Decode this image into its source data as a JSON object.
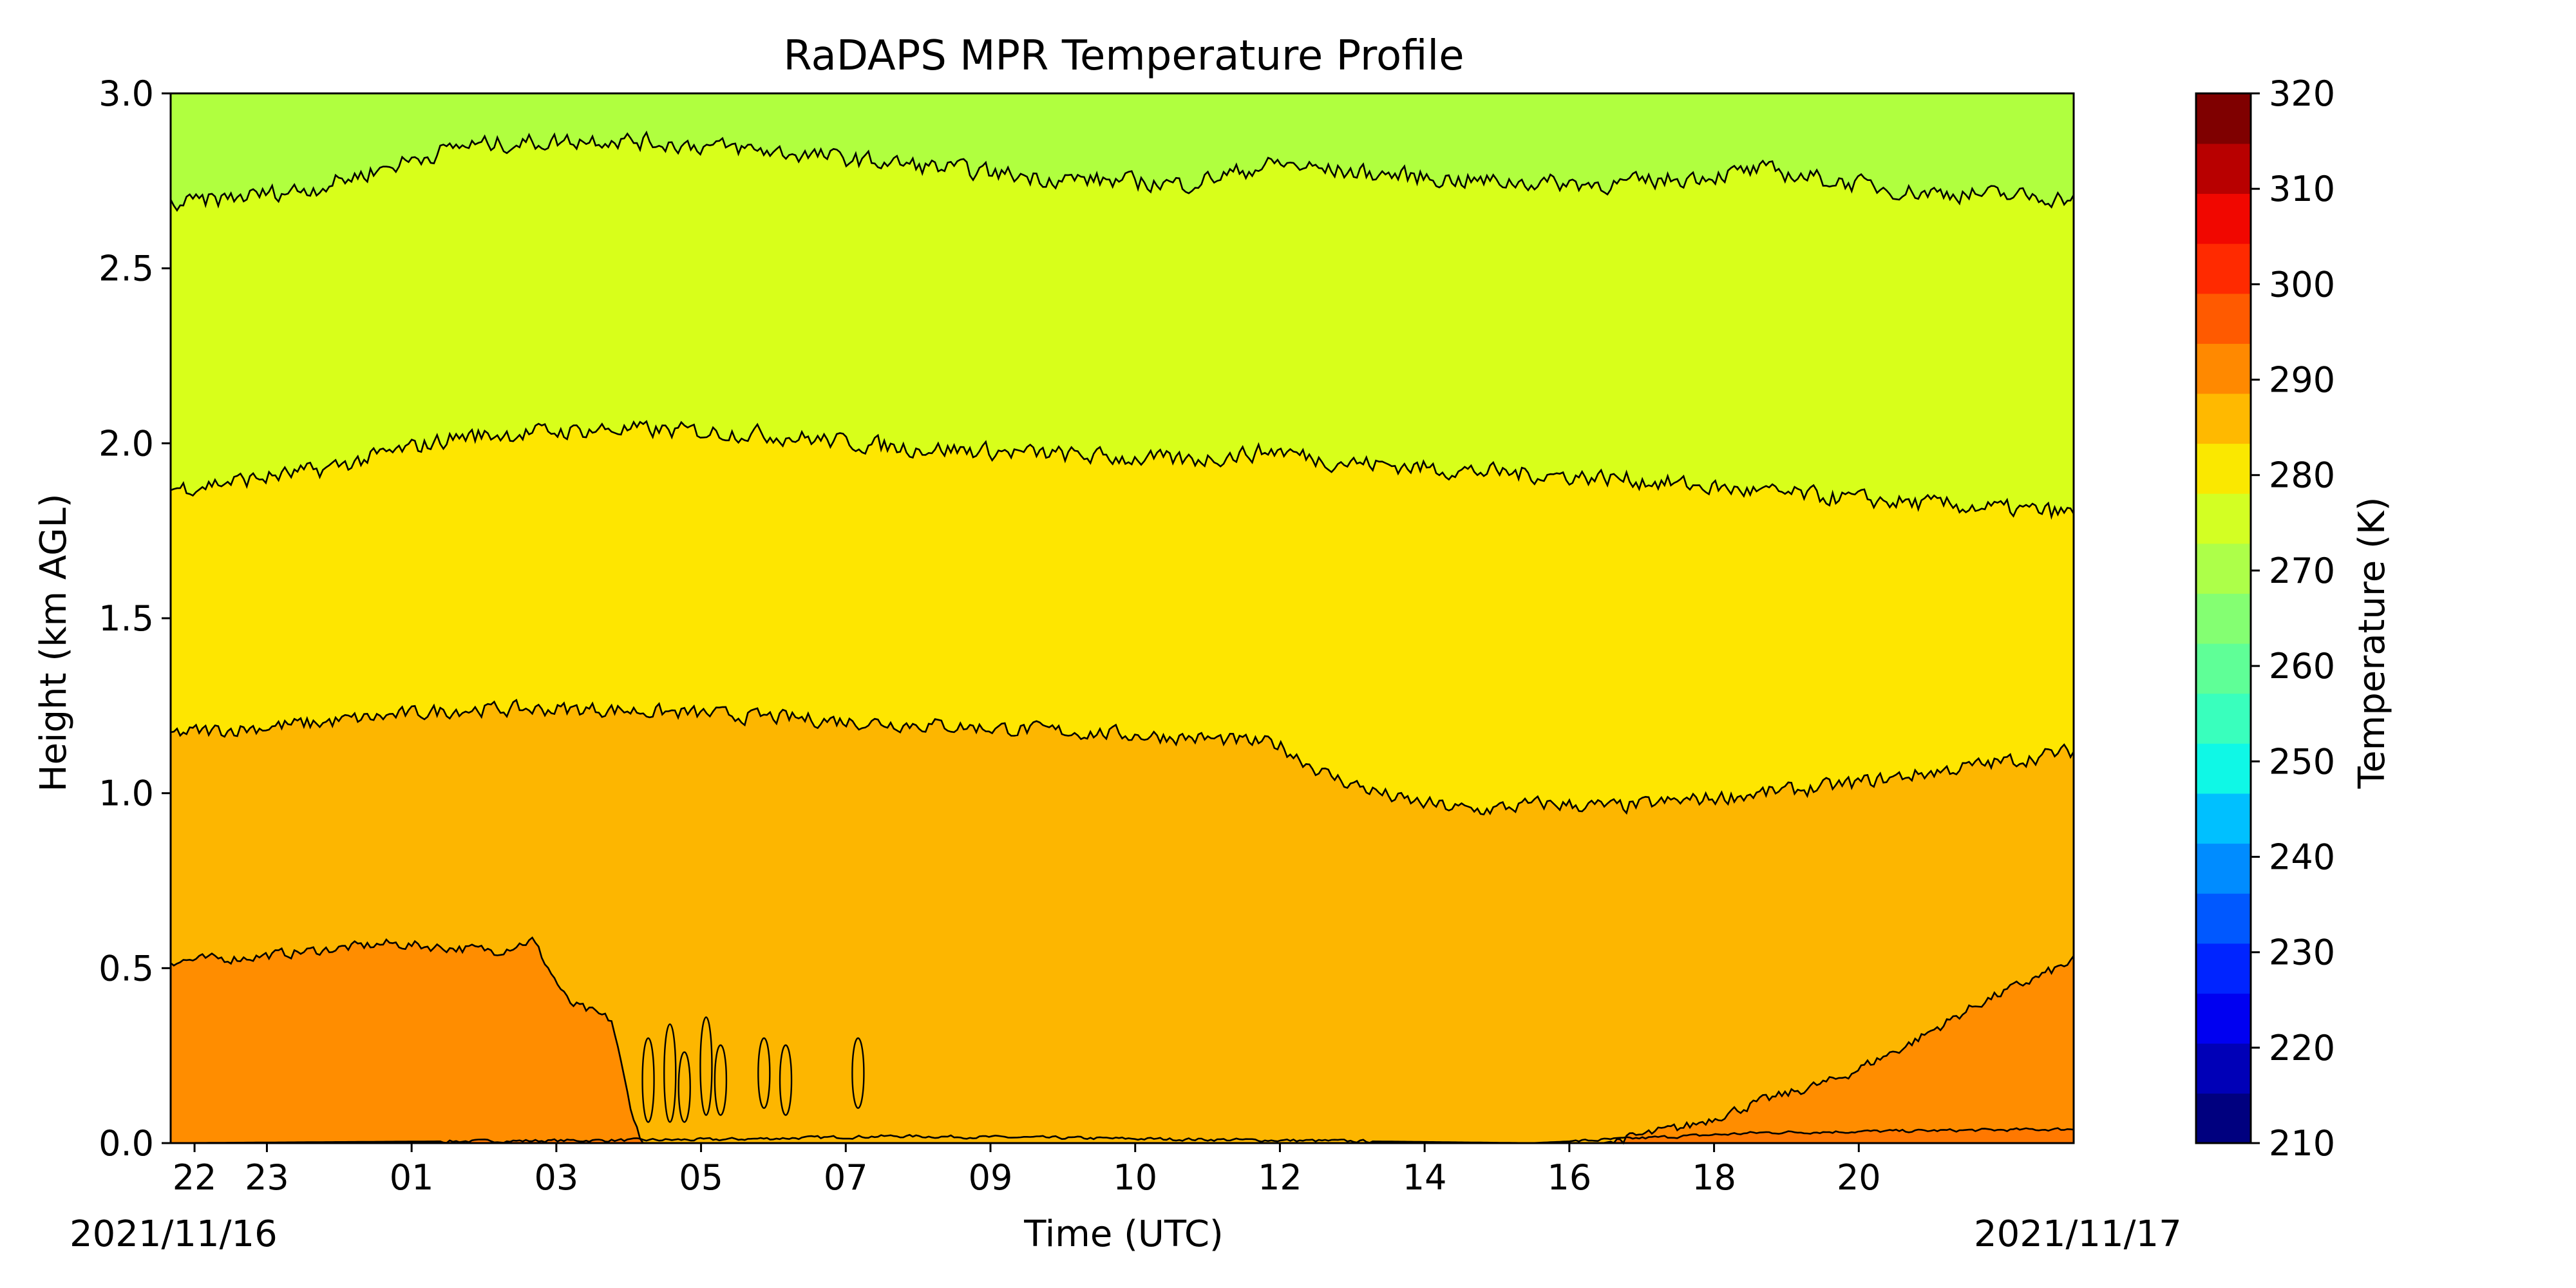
{
  "chart_data": {
    "type": "heatmap",
    "subtype": "filled-contour",
    "title": "RaDAPS MPR Temperature Profile",
    "xlabel": "Time (UTC)",
    "ylabel": "Height (km AGL)",
    "x_ticks": [
      "22",
      "23",
      "01",
      "03",
      "05",
      "07",
      "09",
      "10",
      "12",
      "14",
      "16",
      "18",
      "20"
    ],
    "x_tick_hours": [
      0.33,
      1.33,
      3.33,
      5.33,
      7.33,
      9.33,
      11.33,
      13.33,
      15.33,
      17.33,
      19.33,
      21.33,
      23.33
    ],
    "x_range_hours": [
      0,
      26.3
    ],
    "date_start": "2021/11/16",
    "date_end": "2021/11/17",
    "ylim": [
      0.0,
      3.0
    ],
    "y_ticks": [
      "0.0",
      "0.5",
      "1.0",
      "1.5",
      "2.0",
      "2.5",
      "3.0"
    ],
    "y_tick_values": [
      0.0,
      0.5,
      1.0,
      1.5,
      2.0,
      2.5,
      3.0
    ],
    "colorbar": {
      "label": "Temperature (K)",
      "range": [
        210,
        320
      ],
      "step": 5,
      "ticks": [
        "210",
        "220",
        "230",
        "240",
        "250",
        "260",
        "270",
        "280",
        "290",
        "300",
        "310",
        "320"
      ],
      "tick_values": [
        210,
        220,
        230,
        240,
        250,
        260,
        270,
        280,
        290,
        300,
        310,
        320
      ],
      "colors": [
        "#00007f",
        "#0000b7",
        "#0000f1",
        "#0024ff",
        "#0058ff",
        "#008cff",
        "#00c0ff",
        "#0ff8e6",
        "#39ffbd",
        "#5fff97",
        "#84ff72",
        "#adff49",
        "#d3ff23",
        "#fae800",
        "#ffb900",
        "#ff8900",
        "#ff5a00",
        "#ff2a00",
        "#f10700",
        "#b80000",
        "#7f0000"
      ]
    },
    "contour_bands": [
      {
        "range": [
          295,
          300
        ],
        "color": "#ff7800"
      },
      {
        "range": [
          290,
          295
        ],
        "color": "#ff8d00"
      },
      {
        "range": [
          285,
          290
        ],
        "color": "#fdb600"
      },
      {
        "range": [
          280,
          285
        ],
        "color": "#fee600"
      },
      {
        "range": [
          275,
          280
        ],
        "color": "#d8ff1a"
      },
      {
        "range": [
          270,
          275
        ],
        "color": "#b0ff3f"
      }
    ],
    "contour_boundaries_km": [
      {
        "between": "295-290",
        "x_hours": [
          0,
          7.5,
          10.0,
          18.8,
          22.0,
          26.3
        ],
        "y_km": [
          0.0,
          0.01,
          0.02,
          0.0,
          0.03,
          0.04
        ],
        "note_region": "surface warm layer, late period only"
      },
      {
        "between": "290-285",
        "x_hours": [
          0,
          1,
          2,
          3,
          4.5,
          5,
          5.5,
          6.1,
          6.3,
          6.5,
          19.8,
          21,
          22,
          23,
          24,
          25,
          26.3
        ],
        "y_km": [
          0.52,
          0.53,
          0.55,
          0.57,
          0.55,
          0.58,
          0.4,
          0.35,
          0.15,
          0.0,
          0.0,
          0.05,
          0.12,
          0.18,
          0.28,
          0.4,
          0.52
        ]
      },
      {
        "between": "285-280",
        "x_hours": [
          0,
          2,
          4,
          6,
          8,
          10,
          12,
          14,
          15.3,
          16,
          17,
          18,
          19,
          20,
          21,
          22,
          23,
          24,
          25,
          26.3
        ],
        "y_km": [
          1.17,
          1.2,
          1.24,
          1.24,
          1.22,
          1.2,
          1.18,
          1.16,
          1.14,
          1.05,
          0.98,
          0.95,
          0.97,
          0.96,
          0.98,
          1.0,
          1.02,
          1.05,
          1.08,
          1.12
        ]
      },
      {
        "between": "280-275",
        "x_hours": [
          0,
          2,
          4,
          6,
          8,
          10,
          12,
          14,
          15.3,
          16,
          18,
          20,
          22,
          24,
          26.3
        ],
        "y_km": [
          1.87,
          1.92,
          2.02,
          2.04,
          2.03,
          1.99,
          1.97,
          1.95,
          1.98,
          1.95,
          1.92,
          1.9,
          1.86,
          1.83,
          1.8
        ]
      },
      {
        "between": "275-270",
        "x_hours": [
          0,
          2,
          4,
          6,
          8,
          10,
          12,
          14,
          15.3,
          16,
          18,
          20,
          22,
          24,
          26.3
        ],
        "y_km": [
          2.68,
          2.73,
          2.85,
          2.87,
          2.84,
          2.8,
          2.76,
          2.74,
          2.8,
          2.78,
          2.75,
          2.74,
          2.78,
          2.72,
          2.7
        ]
      }
    ],
    "grid": false,
    "legend": "colorbar-right"
  }
}
